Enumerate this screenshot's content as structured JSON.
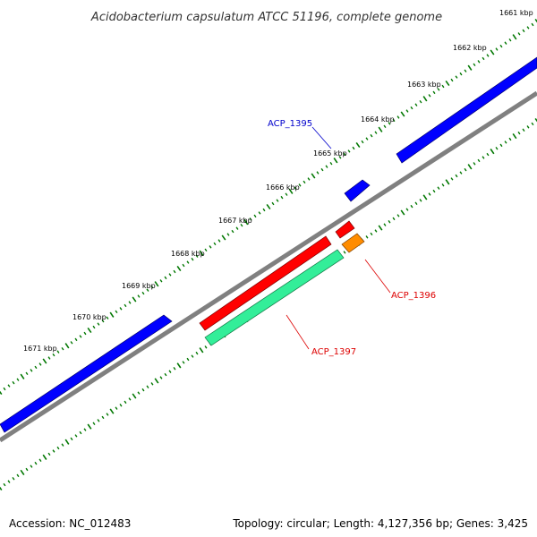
{
  "title": "Acidobacterium capsulatum ATCC 51196, complete genome",
  "footer": {
    "accession": "Accession: NC_012483",
    "summary": "Topology: circular; Length: 4,127,356 bp; Genes: 3,425"
  },
  "ticks": [
    "1661 kbp",
    "1662 kbp",
    "1663 kbp",
    "1664 kbp",
    "1665 kbp",
    "1666 kbp",
    "1667 kbp",
    "1668 kbp",
    "1669 kbp",
    "1670 kbp",
    "1671 kbp"
  ],
  "genes": [
    {
      "label": "ACP_1395",
      "color": "#0000cc"
    },
    {
      "label": "ACP_1396",
      "color": "#dd0000"
    },
    {
      "label": "ACP_1397",
      "color": "#dd0000"
    }
  ],
  "colors": {
    "forward_cds": "#0000ff",
    "reverse_cds": "#ff0000",
    "rna": "#ff8c00",
    "gc_skew": "#33ee99",
    "backbone": "#808080",
    "tick": "#007700"
  }
}
